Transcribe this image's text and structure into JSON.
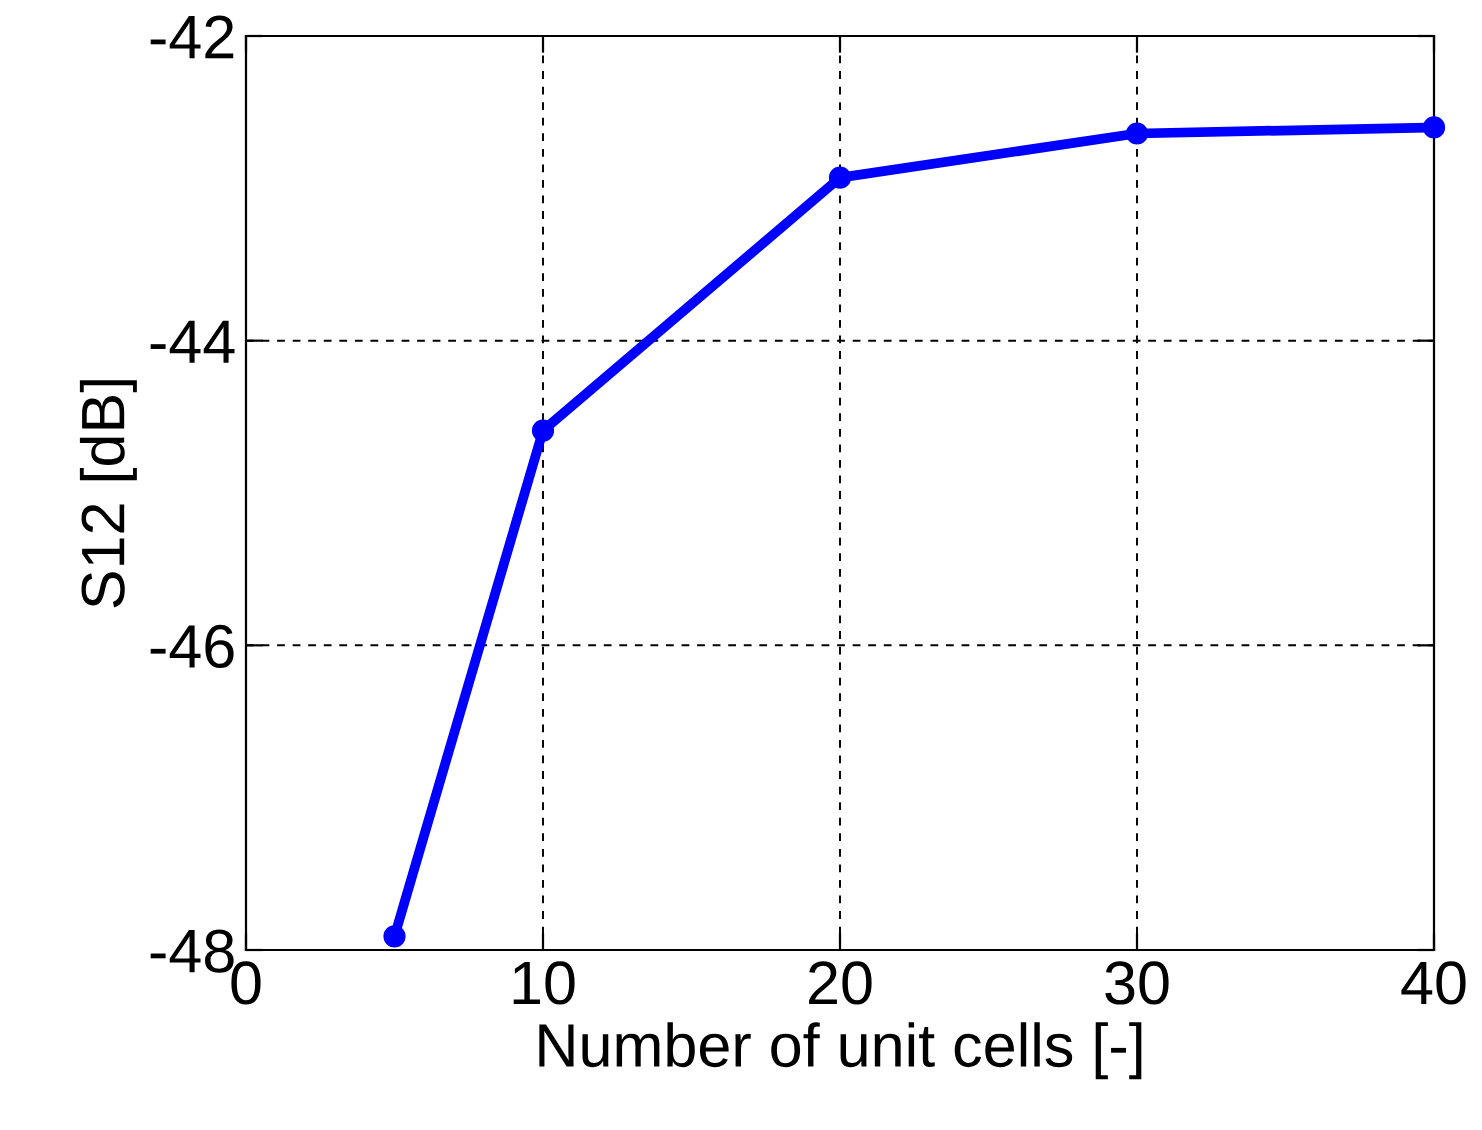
{
  "chart_data": {
    "type": "line",
    "xlabel": "Number of unit cells [-]",
    "ylabel": "S12 [dB]",
    "x": [
      5,
      10,
      20,
      30,
      40
    ],
    "series": [
      {
        "color": "#0000ff",
        "values": [
          -47.91,
          -44.59,
          -42.93,
          -42.64,
          -42.6
        ]
      }
    ],
    "xlim": [
      0,
      40
    ],
    "xticks": [
      0,
      10,
      20,
      30,
      40
    ],
    "ylim": [
      -48,
      -42
    ],
    "yticks": [
      -48,
      -46,
      -44,
      -42
    ],
    "grid": true,
    "marker": "circle",
    "line_style": "solid"
  }
}
